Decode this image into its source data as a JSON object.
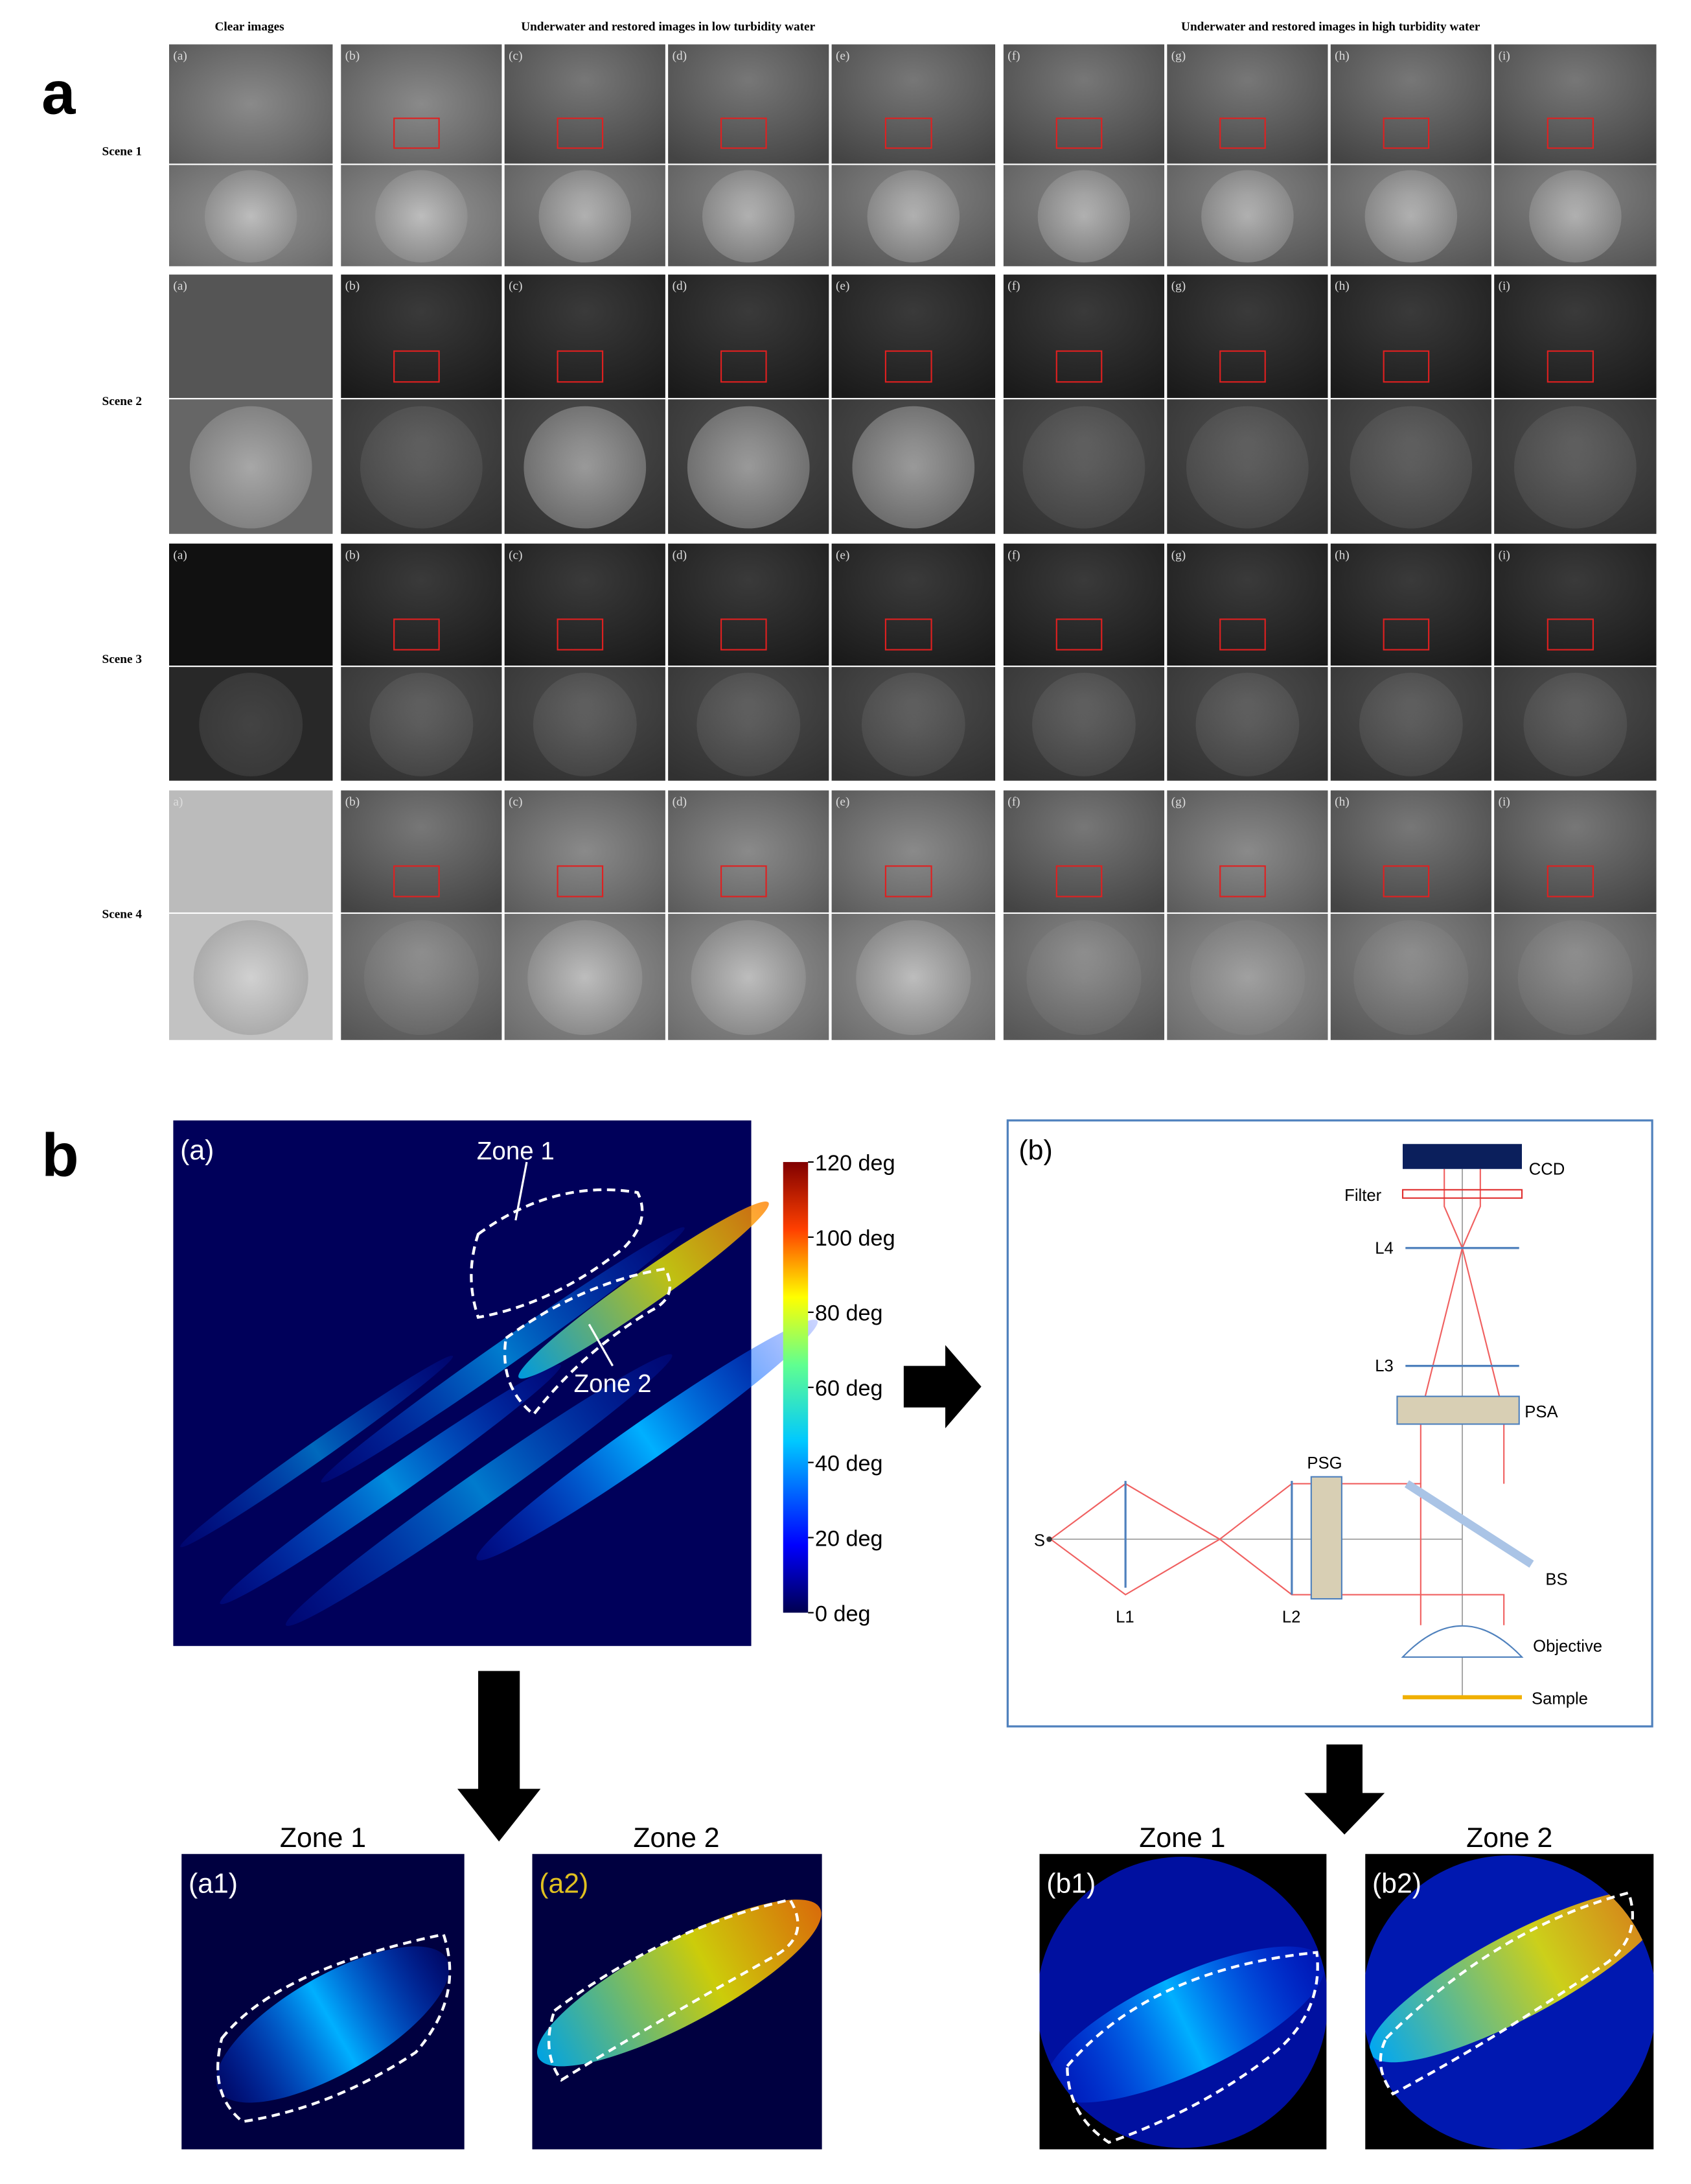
{
  "panel_a": {
    "label": "a",
    "headers": [
      "Clear images",
      "Underwater and restored images in low turbidity water",
      "Underwater and restored images in high turbidity water"
    ],
    "scenes": [
      {
        "label": "Scene 1",
        "tiles": [
          "(a)",
          "(b)",
          "(c)",
          "(d)",
          "(e)",
          "(f)",
          "(g)",
          "(h)",
          "(i)"
        ]
      },
      {
        "label": "Scene 2",
        "tiles": [
          "(a)",
          "(b)",
          "(c)",
          "(d)",
          "(e)",
          "(f)",
          "(g)",
          "(h)",
          "(i)"
        ]
      },
      {
        "label": "Scene 3",
        "tiles": [
          "(a)",
          "(b)",
          "(c)",
          "(d)",
          "(e)",
          "(f)",
          "(g)",
          "(h)",
          "(i)"
        ]
      },
      {
        "label": "Scene 4",
        "tiles": [
          "a)",
          "(b)",
          "(c)",
          "(d)",
          "(e)",
          "(f)",
          "(g)",
          "(h)",
          "(i)"
        ]
      }
    ]
  },
  "panel_b": {
    "label": "b",
    "map": {
      "label": "(a)",
      "zone1": "Zone 1",
      "zone2": "Zone 2",
      "colorbar": [
        "0 deg",
        "20 deg",
        "40 deg",
        "60 deg",
        "80 deg",
        "100 deg",
        "120 deg"
      ]
    },
    "setup": {
      "label": "(b)",
      "ccd": "CCD",
      "filter": "Filter",
      "l4": "L4",
      "l3": "L3",
      "psa": "PSA",
      "psg": "PSG",
      "s": "S",
      "l1": "L1",
      "l2": "L2",
      "bs": "BS",
      "objective": "Objective",
      "sample": "Sample"
    },
    "zooms": [
      {
        "title": "Zone 1",
        "label": "(a1)"
      },
      {
        "title": "Zone 2",
        "label": "(a2)"
      },
      {
        "title": "Zone 1",
        "label": "(b1)"
      },
      {
        "title": "Zone 2",
        "label": "(b2)"
      }
    ]
  }
}
